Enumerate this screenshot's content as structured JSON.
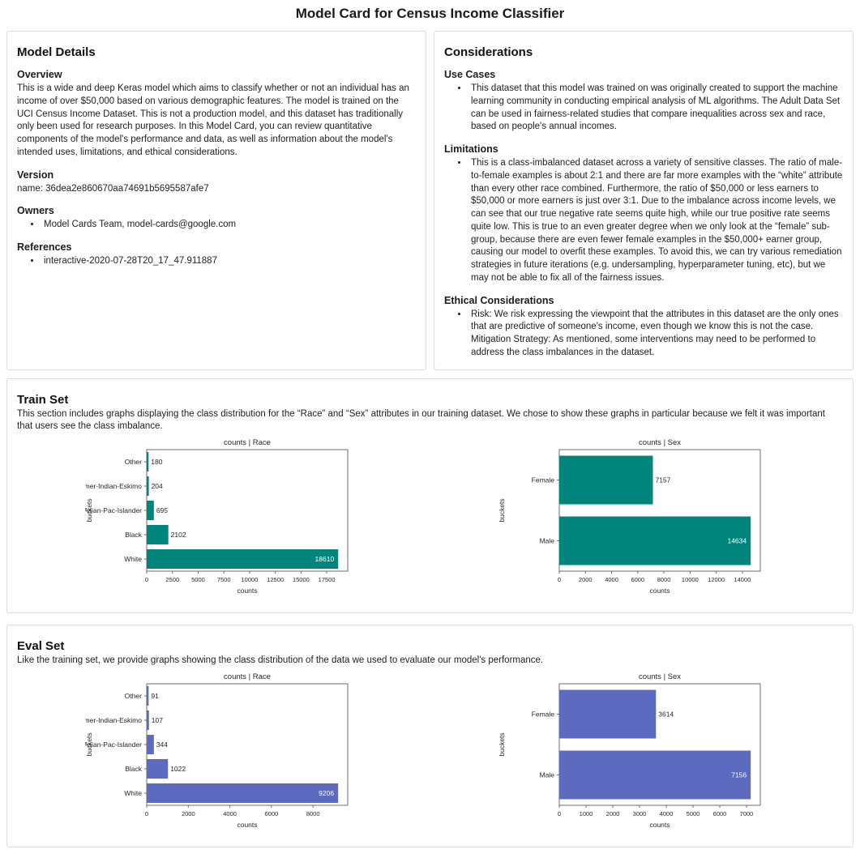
{
  "page": {
    "title": "Model Card for Census Income Classifier"
  },
  "model_details": {
    "title": "Model Details",
    "sections": [
      {
        "heading": "Overview",
        "text": "This is a wide and deep Keras model which aims to classify whether or not an individual has an income of over $50,000 based on various demographic features. The model is trained on the UCI Census Income Dataset. This is not a production model, and this dataset has traditionally only been used for research purposes. In this Model Card, you can review quantitative components of the model's performance and data, as well as information about the model's intended uses, limitations, and ethical considerations."
      },
      {
        "heading": "Version",
        "text": "name: 36dea2e860670aa74691b5695587afe7"
      },
      {
        "heading": "Owners",
        "bullets": [
          "Model Cards Team, model-cards@google.com"
        ]
      },
      {
        "heading": "References",
        "bullets": [
          "interactive-2020-07-28T20_17_47.911887"
        ]
      }
    ]
  },
  "considerations": {
    "title": "Considerations",
    "sections": [
      {
        "heading": "Use Cases",
        "bullets": [
          "This dataset that this model was trained on was originally created to support the machine learning community in conducting empirical analysis of ML algorithms. The Adult Data Set can be used in fairness-related studies that compare inequalities across sex and race, based on people's annual incomes."
        ]
      },
      {
        "heading": "Limitations",
        "bullets": [
          "This is a class-imbalanced dataset across a variety of sensitive classes. The ratio of male-to-female examples is about 2:1 and there are far more examples with the “white” attribute than every other race combined. Furthermore, the ratio of $50,000 or less earners to $50,000 or more earners is just over 3:1. Due to the imbalance across income levels, we can see that our true negative rate seems quite high, while our true positive rate seems quite low. This is true to an even greater degree when we only look at the “female” sub-group, because there are even fewer female examples in the $50,000+ earner group, causing our model to overfit these examples. To avoid this, we can try various remediation strategies in future iterations (e.g. undersampling, hyperparameter tuning, etc), but we may not be able to fix all of the fairness issues."
        ]
      },
      {
        "heading": "Ethical Considerations",
        "bullets": [
          "Risk: We risk expressing the viewpoint that the attributes in this dataset are the only ones that are predictive of someone's income, even though we know this is not the case.\nMitigation Strategy: As mentioned, some interventions may need to be performed to address the class imbalances in the dataset."
        ]
      }
    ]
  },
  "train_set": {
    "title": "Train Set",
    "description": "This section includes graphs displaying the class distribution for the “Race” and “Sex” attributes in our training dataset. We chose to show these graphs in particular because we felt it was important that users see the class imbalance."
  },
  "eval_set": {
    "title": "Eval Set",
    "description": "Like the training set, we provide graphs showing the class distribution of the data we used to evaluate our model's performance."
  },
  "chart_data": [
    {
      "id": "train-race",
      "type": "bar",
      "orientation": "horizontal",
      "title": "counts | Race",
      "xlabel": "counts",
      "ylabel": "buckets",
      "categories": [
        "Other",
        "Amer-Indian-Eskimo",
        "Asian-Pac-Islander",
        "Black",
        "White"
      ],
      "values": [
        180,
        204,
        695,
        2102,
        18610
      ],
      "xticks": [
        0,
        2500,
        5000,
        7500,
        10000,
        12500,
        15000,
        17500
      ],
      "xlim": [
        0,
        19540
      ],
      "bar_color": "#00857C",
      "grid": false,
      "legend": false
    },
    {
      "id": "train-sex",
      "type": "bar",
      "orientation": "horizontal",
      "title": "counts | Sex",
      "xlabel": "counts",
      "ylabel": "buckets",
      "categories": [
        "Female",
        "Male"
      ],
      "values": [
        7157,
        14634
      ],
      "xticks": [
        0,
        2000,
        4000,
        6000,
        8000,
        10000,
        12000,
        14000
      ],
      "xlim": [
        0,
        15370
      ],
      "bar_color": "#00857C",
      "grid": false,
      "legend": false
    },
    {
      "id": "eval-race",
      "type": "bar",
      "orientation": "horizontal",
      "title": "counts | Race",
      "xlabel": "counts",
      "ylabel": "buckets",
      "categories": [
        "Other",
        "Amer-Indian-Eskimo",
        "Asian-Pac-Islander",
        "Black",
        "White"
      ],
      "values": [
        91,
        107,
        344,
        1022,
        9206
      ],
      "xticks": [
        0,
        2000,
        4000,
        6000,
        8000
      ],
      "xlim": [
        0,
        9670
      ],
      "bar_color": "#5C6BC0",
      "grid": false,
      "legend": false
    },
    {
      "id": "eval-sex",
      "type": "bar",
      "orientation": "horizontal",
      "title": "counts | Sex",
      "xlabel": "counts",
      "ylabel": "buckets",
      "categories": [
        "Female",
        "Male"
      ],
      "values": [
        3614,
        7156
      ],
      "xticks": [
        0,
        1000,
        2000,
        3000,
        4000,
        5000,
        6000,
        7000
      ],
      "xlim": [
        0,
        7515
      ],
      "bar_color": "#5C6BC0",
      "grid": false,
      "legend": false
    }
  ]
}
